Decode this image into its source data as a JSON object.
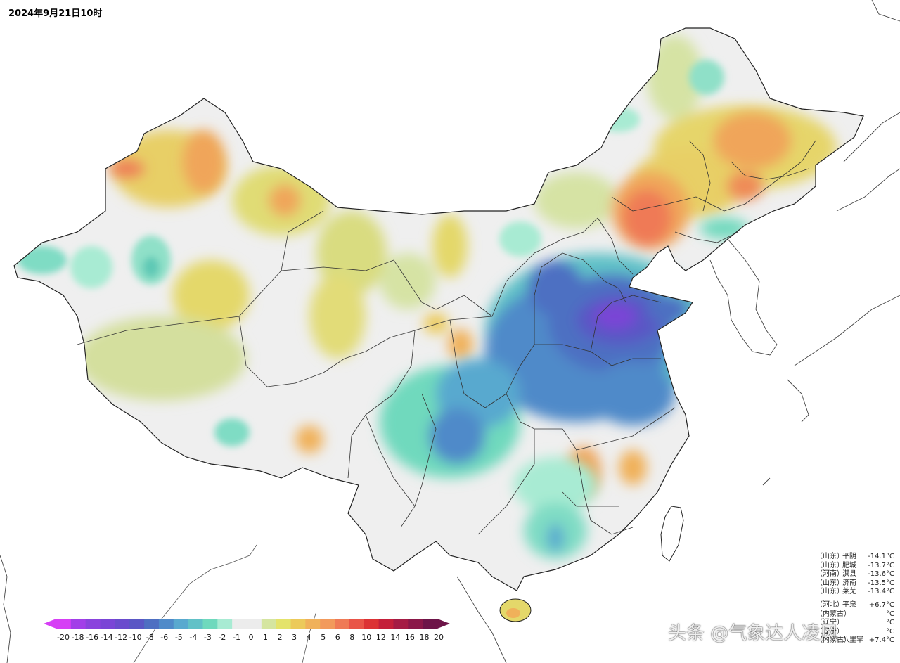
{
  "title": "2024年9月21日10时",
  "colorbar": {
    "labels": [
      "-20",
      "-18",
      "-16",
      "-14",
      "-12",
      "-10",
      "-8",
      "-6",
      "-5",
      "-4",
      "-3",
      "-2",
      "-1",
      "0",
      "1",
      "2",
      "3",
      "4",
      "5",
      "6",
      "8",
      "10",
      "12",
      "14",
      "16",
      "18",
      "20"
    ],
    "colors": [
      "#d63ff5",
      "#a23fe8",
      "#8a43dd",
      "#7a45d6",
      "#6a4bcd",
      "#5a57c5",
      "#4e6fc2",
      "#4f8ac9",
      "#59a9cf",
      "#61c1c7",
      "#6fd9bd",
      "#a8ebd3",
      "#ececec",
      "#ececec",
      "#d5e5a0",
      "#e4e36b",
      "#ecca5a",
      "#f0b15a",
      "#f29a5c",
      "#ef7a56",
      "#e95447",
      "#dc3234",
      "#c41f3a",
      "#a51b44",
      "#8a1748",
      "#6d1448"
    ]
  },
  "stations": {
    "cold": [
      {
        "province": "（山东）",
        "name": "平阴",
        "value": "-14.1°C"
      },
      {
        "province": "（山东）",
        "name": "肥城",
        "value": "-13.7°C"
      },
      {
        "province": "（河南）",
        "name": "淇县",
        "value": "-13.6°C"
      },
      {
        "province": "（山东）",
        "name": "济南",
        "value": "-13.5°C"
      },
      {
        "province": "（山东）",
        "name": "莱芜",
        "value": "-13.4°C"
      }
    ],
    "warm": [
      {
        "province": "（河北）",
        "name": "平泉",
        "value": "+6.7°C"
      },
      {
        "province": "（内蒙古）",
        "name": "",
        "value": "°C"
      },
      {
        "province": "（辽宁）",
        "name": "",
        "value": "°C"
      },
      {
        "province": "（辽宁）",
        "name": "",
        "value": "°C"
      },
      {
        "province": "（内蒙古）",
        "name": "八里罕",
        "value": "+7.4°C"
      }
    ]
  },
  "watermark": "头条 @气象达人凌风",
  "legend_colors": {
    "outline": "#222222",
    "land_neutral": "#efefef"
  }
}
